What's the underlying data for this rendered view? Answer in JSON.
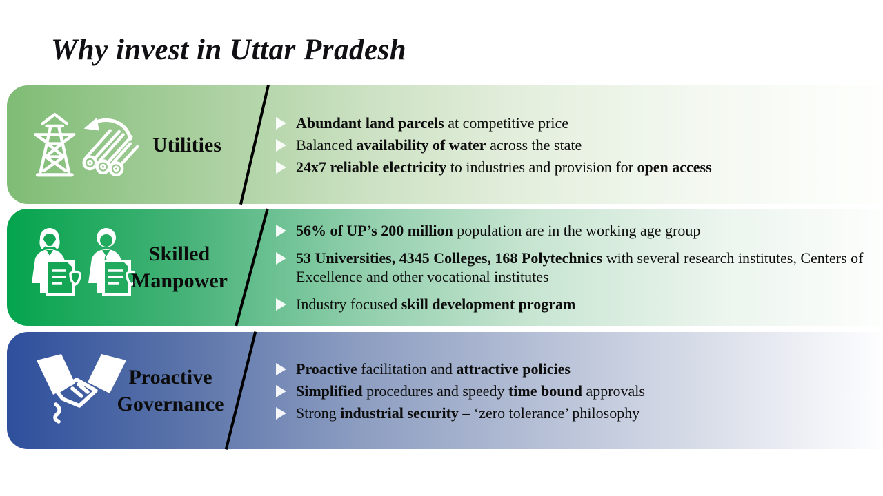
{
  "page": {
    "title": "Why invest in Uttar Pradesh"
  },
  "colors": {
    "background": "#ffffff",
    "title_text": "#101014",
    "body_text": "#0d0d0d",
    "divider_slash": "#000000",
    "bullet_marker": "#ffffff",
    "band_utilities_start": "#7fbc75",
    "band_utilities_end": "#fefffd",
    "band_skilled_start": "#04a44d",
    "band_skilled_end": "#fdfefd",
    "band_governance_start": "#2e4f9c",
    "band_governance_end": "#fefeff"
  },
  "bands": [
    {
      "id": "utilities",
      "label": "Utilities",
      "icon": "power-tower-and-pipes-icon",
      "bullets": [
        {
          "runs": [
            {
              "t": "Abundant land parcels",
              "b": true
            },
            {
              "t": " at competitive price",
              "b": false
            }
          ]
        },
        {
          "runs": [
            {
              "t": "Balanced ",
              "b": false
            },
            {
              "t": "availability of water",
              "b": true
            },
            {
              "t": " across the state",
              "b": false
            }
          ]
        },
        {
          "runs": [
            {
              "t": "24x7 reliable electricity",
              "b": true
            },
            {
              "t": " to industries and provision for ",
              "b": false
            },
            {
              "t": "open access",
              "b": true
            }
          ]
        }
      ]
    },
    {
      "id": "skilled-manpower",
      "label": "Skilled\nManpower",
      "icon": "two-people-with-documents-icon",
      "bullets": [
        {
          "runs": [
            {
              "t": "56% of UP’s 200 million",
              "b": true
            },
            {
              "t": " population are in the working age group",
              "b": false
            }
          ]
        },
        {
          "runs": [
            {
              "t": "53 Universities, 4345 Colleges, 168 Polytechnics",
              "b": true
            },
            {
              "t": " with several research institutes, Centers of Excellence and other vocational institutes",
              "b": false
            }
          ]
        },
        {
          "runs": [
            {
              "t": "Industry focused ",
              "b": false
            },
            {
              "t": "skill development program",
              "b": true
            }
          ]
        }
      ]
    },
    {
      "id": "proactive-governance",
      "label": "Proactive\nGovernance",
      "icon": "handshake-icon",
      "bullets": [
        {
          "runs": [
            {
              "t": "Proactive",
              "b": true
            },
            {
              "t": " facilitation and ",
              "b": false
            },
            {
              "t": "attractive policies",
              "b": true
            }
          ]
        },
        {
          "runs": [
            {
              "t": "Simplified",
              "b": true
            },
            {
              "t": " procedures and speedy ",
              "b": false
            },
            {
              "t": "time bound",
              "b": true
            },
            {
              "t": " approvals",
              "b": false
            }
          ]
        },
        {
          "runs": [
            {
              "t": "Strong ",
              "b": false
            },
            {
              "t": "industrial security –",
              "b": true
            },
            {
              "t": " ‘zero tolerance’ philosophy",
              "b": false
            }
          ]
        }
      ]
    }
  ]
}
